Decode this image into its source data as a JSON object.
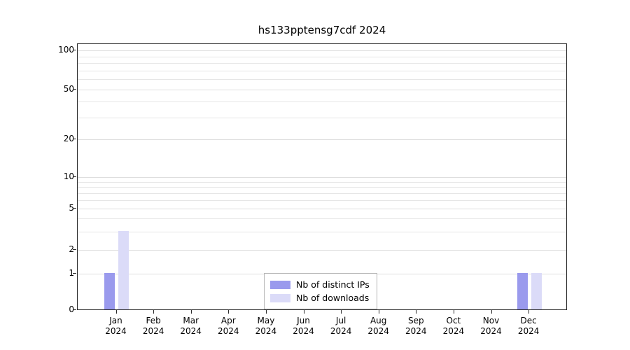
{
  "title": "hs133pptensg7cdf 2024",
  "chart_data": {
    "type": "bar",
    "title": "hs133pptensg7cdf 2024",
    "categories": [
      "Jan",
      "Feb",
      "Mar",
      "Apr",
      "May",
      "Jun",
      "Jul",
      "Aug",
      "Sep",
      "Oct",
      "Nov",
      "Dec"
    ],
    "category_year": "2024",
    "series": [
      {
        "name": "Nb of distinct IPs",
        "color": "#9a9aed",
        "values": [
          1,
          0,
          0,
          0,
          0,
          0,
          0,
          0,
          0,
          0,
          0,
          1
        ]
      },
      {
        "name": "Nb of downloads",
        "color": "#dbdbf8",
        "values": [
          3,
          0,
          0,
          0,
          0,
          0,
          0,
          0,
          0,
          0,
          0,
          1
        ]
      }
    ],
    "yscale": "symlog",
    "yticks": [
      0,
      1,
      2,
      5,
      10,
      20,
      50,
      100
    ],
    "ylim": [
      0,
      100
    ],
    "xlabel": "",
    "ylabel": "",
    "grid": true,
    "legend_position": "bottom-center"
  }
}
